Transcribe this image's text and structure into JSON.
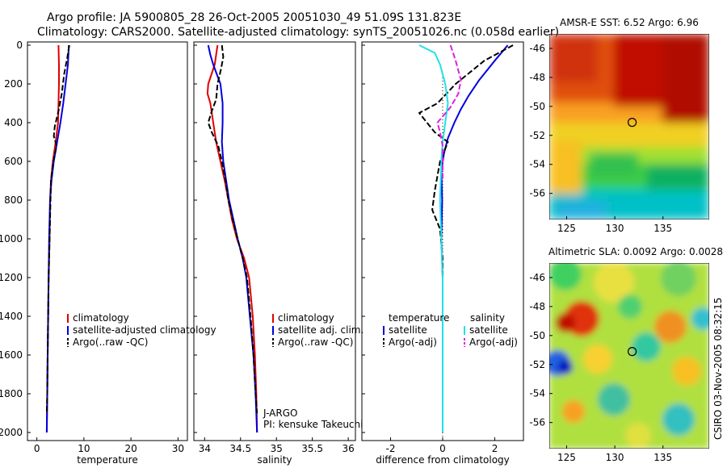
{
  "header": {
    "line1": "Argo profile: JA 5900805_28 26-Oct-2005 20051030_49 51.09S 131.823E",
    "line2": "Climatology: CARS2000. Satellite-adjusted climatology: synTS_20051026.nc (0.058d earlier)"
  },
  "credit": "CSIRO 03-Nov-2005 08:32:15",
  "colors": {
    "red": "#e00000",
    "blue": "#0000dd",
    "black": "#000000",
    "cyan": "#22e0e8",
    "magenta": "#e020e0"
  },
  "chart_data": [
    {
      "type": "line",
      "xlabel": "temperature",
      "ylabel": "",
      "xlim": [
        -2,
        32
      ],
      "ylim": [
        2000,
        0
      ],
      "xticks": [
        0,
        10,
        20,
        30
      ],
      "yticks": [
        0,
        200,
        400,
        600,
        800,
        1000,
        1200,
        1400,
        1600,
        1800,
        2000
      ],
      "legend": {
        "position": "bottom-right",
        "items": [
          "climatology",
          "satellite-adjusted climatology",
          "Argo(..raw -QC)"
        ]
      },
      "series": [
        {
          "name": "climatology",
          "color": "red",
          "dash": false,
          "points": [
            [
              4.6,
              0
            ],
            [
              4.7,
              100
            ],
            [
              4.7,
              200
            ],
            [
              4.6,
              300
            ],
            [
              4.5,
              400
            ],
            [
              4.0,
              500
            ],
            [
              3.4,
              600
            ],
            [
              3.0,
              700
            ],
            [
              2.8,
              800
            ],
            [
              2.7,
              1000
            ],
            [
              2.5,
              1200
            ],
            [
              2.4,
              1400
            ],
            [
              2.3,
              1600
            ],
            [
              2.2,
              1800
            ],
            [
              2.1,
              2000
            ]
          ]
        },
        {
          "name": "satellite-adjusted climatology",
          "color": "blue",
          "dash": false,
          "points": [
            [
              6.8,
              0
            ],
            [
              6.6,
              100
            ],
            [
              6.1,
              200
            ],
            [
              5.6,
              300
            ],
            [
              5.0,
              400
            ],
            [
              4.3,
              500
            ],
            [
              3.6,
              600
            ],
            [
              3.1,
              700
            ],
            [
              2.8,
              800
            ],
            [
              2.6,
              1000
            ],
            [
              2.5,
              1200
            ],
            [
              2.4,
              1400
            ],
            [
              2.3,
              1600
            ],
            [
              2.2,
              1800
            ],
            [
              2.1,
              2000
            ]
          ]
        },
        {
          "name": "Argo(..raw -QC)",
          "color": "black",
          "dash": true,
          "points": [
            [
              6.9,
              0
            ],
            [
              6.5,
              60
            ],
            [
              5.8,
              150
            ],
            [
              5.3,
              250
            ],
            [
              4.6,
              340
            ],
            [
              3.8,
              420
            ],
            [
              3.6,
              470
            ],
            [
              4.2,
              520
            ],
            [
              3.5,
              600
            ],
            [
              3.0,
              700
            ],
            [
              2.9,
              800
            ],
            [
              2.7,
              1000
            ],
            [
              2.5,
              1200
            ],
            [
              2.4,
              1400
            ],
            [
              2.3,
              1600
            ],
            [
              2.2,
              1800
            ],
            [
              2.1,
              1900
            ]
          ]
        }
      ]
    },
    {
      "type": "line",
      "xlabel": "salinity",
      "ylabel": "",
      "xlim": [
        33.85,
        36.1
      ],
      "ylim": [
        2000,
        0
      ],
      "xticks": [
        34,
        34.5,
        35,
        35.5,
        36
      ],
      "legend": {
        "position": "bottom-right",
        "items": [
          "climatology",
          "satellite adj. clim.",
          "Argo(..raw -QC)"
        ]
      },
      "annotation": [
        "J-ARGO",
        "PI: kensuke Takeuchi"
      ],
      "series": [
        {
          "name": "climatology",
          "color": "red",
          "dash": false,
          "points": [
            [
              34.18,
              0
            ],
            [
              34.14,
              100
            ],
            [
              34.05,
              200
            ],
            [
              34.04,
              250
            ],
            [
              34.08,
              300
            ],
            [
              34.12,
              400
            ],
            [
              34.16,
              500
            ],
            [
              34.22,
              600
            ],
            [
              34.28,
              700
            ],
            [
              34.33,
              800
            ],
            [
              34.38,
              900
            ],
            [
              34.45,
              1000
            ],
            [
              34.55,
              1100
            ],
            [
              34.62,
              1200
            ],
            [
              34.67,
              1400
            ],
            [
              34.7,
              1600
            ],
            [
              34.72,
              1800
            ],
            [
              34.73,
              2000
            ]
          ]
        },
        {
          "name": "satellite adj. clim.",
          "color": "blue",
          "dash": false,
          "points": [
            [
              34.05,
              0
            ],
            [
              34.08,
              50
            ],
            [
              34.12,
              100
            ],
            [
              34.17,
              150
            ],
            [
              34.22,
              200
            ],
            [
              34.25,
              300
            ],
            [
              34.25,
              400
            ],
            [
              34.24,
              500
            ],
            [
              34.26,
              600
            ],
            [
              34.3,
              700
            ],
            [
              34.34,
              800
            ],
            [
              34.4,
              900
            ],
            [
              34.46,
              1000
            ],
            [
              34.53,
              1100
            ],
            [
              34.58,
              1200
            ],
            [
              34.63,
              1400
            ],
            [
              34.68,
              1600
            ],
            [
              34.71,
              1800
            ],
            [
              34.73,
              2000
            ]
          ]
        },
        {
          "name": "Argo(..raw -QC)",
          "color": "black",
          "dash": true,
          "points": [
            [
              34.24,
              0
            ],
            [
              34.26,
              60
            ],
            [
              34.23,
              120
            ],
            [
              34.18,
              200
            ],
            [
              34.16,
              280
            ],
            [
              34.1,
              340
            ],
            [
              34.05,
              400
            ],
            [
              34.1,
              450
            ],
            [
              34.19,
              520
            ],
            [
              34.24,
              600
            ],
            [
              34.29,
              700
            ],
            [
              34.33,
              800
            ],
            [
              34.39,
              900
            ],
            [
              34.46,
              1000
            ],
            [
              34.53,
              1100
            ],
            [
              34.59,
              1200
            ],
            [
              34.64,
              1400
            ],
            [
              34.68,
              1600
            ],
            [
              34.71,
              1800
            ],
            [
              34.73,
              1900
            ]
          ]
        }
      ]
    },
    {
      "type": "line",
      "xlabel": "difference from climatology",
      "ylabel": "",
      "xlim": [
        -3.1,
        3.1
      ],
      "ylim": [
        2000,
        0
      ],
      "xticks": [
        -2,
        0,
        2
      ],
      "legend": {
        "position": "bottom",
        "columns": [
          {
            "heading": "temperature",
            "items": [
              "satellite",
              "Argo(-adj)"
            ]
          },
          {
            "heading": "salinity",
            "items": [
              "satellite",
              "Argo(-adj)"
            ]
          }
        ]
      },
      "series": [
        {
          "name": "temperature satellite",
          "color": "blue",
          "dash": false,
          "points": [
            [
              2.5,
              0
            ],
            [
              2.0,
              80
            ],
            [
              1.4,
              180
            ],
            [
              1.0,
              260
            ],
            [
              0.7,
              330
            ],
            [
              0.45,
              400
            ],
            [
              0.2,
              480
            ],
            [
              0.05,
              560
            ],
            [
              -0.05,
              650
            ],
            [
              -0.02,
              800
            ],
            [
              -0.05,
              1000
            ],
            [
              0,
              1200
            ],
            [
              0,
              1600
            ],
            [
              0,
              2000
            ]
          ]
        },
        {
          "name": "temperature Argo(-adj)",
          "color": "black",
          "dash": true,
          "points": [
            [
              2.7,
              0
            ],
            [
              1.6,
              80
            ],
            [
              0.5,
              200
            ],
            [
              -0.2,
              300
            ],
            [
              -0.9,
              350
            ],
            [
              -0.6,
              400
            ],
            [
              -0.3,
              450
            ],
            [
              0.2,
              500
            ],
            [
              -0.1,
              600
            ],
            [
              -0.3,
              750
            ],
            [
              -0.4,
              850
            ],
            [
              -0.1,
              950
            ],
            [
              0,
              1100
            ],
            [
              0,
              1600
            ],
            [
              0,
              1900
            ]
          ]
        },
        {
          "name": "salinity satellite",
          "color": "cyan",
          "dash": false,
          "points": [
            [
              -0.9,
              0
            ],
            [
              -0.3,
              40
            ],
            [
              -0.1,
              100
            ],
            [
              0.1,
              200
            ],
            [
              0.2,
              300
            ],
            [
              0.1,
              400
            ],
            [
              0.0,
              500
            ],
            [
              -0.05,
              600
            ],
            [
              -0.1,
              800
            ],
            [
              -0.05,
              1000
            ],
            [
              0,
              1200
            ],
            [
              0,
              1600
            ],
            [
              0,
              2000
            ]
          ]
        },
        {
          "name": "salinity Argo(-adj)",
          "color": "magenta",
          "dash": true,
          "points": [
            [
              0.3,
              0
            ],
            [
              0.5,
              80
            ],
            [
              0.7,
              180
            ],
            [
              0.6,
              250
            ],
            [
              0.3,
              320
            ],
            [
              -0.2,
              400
            ],
            [
              -0.1,
              450
            ],
            [
              0,
              520
            ],
            [
              0,
              600
            ],
            [
              0,
              700
            ]
          ]
        }
      ]
    }
  ],
  "maps": [
    {
      "title": "AMSR-E SST: 6.52 Argo: 6.96",
      "xticks": [
        "125",
        "130",
        "135"
      ],
      "yticks": [
        "-46",
        "-48",
        "-50",
        "-52",
        "-54",
        "-56"
      ],
      "marker": {
        "lon": 131.8,
        "lat": -51.1
      }
    },
    {
      "title": "Altimetric SLA: 0.0092 Argo: 0.0028",
      "xticks": [
        "125",
        "130",
        "135"
      ],
      "yticks": [
        "-46",
        "-48",
        "-50",
        "-52",
        "-54",
        "-56"
      ],
      "marker": {
        "lon": 131.8,
        "lat": -51.1
      }
    }
  ]
}
